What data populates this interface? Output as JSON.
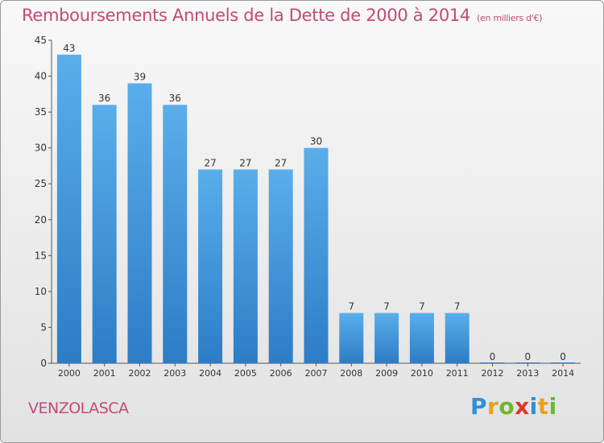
{
  "title": "Remboursements Annuels de la Dette de 2000 à 2014",
  "unit": "(en milliers d'€)",
  "commune": "VENZOLASCA",
  "logo": {
    "letters": [
      "P",
      "r",
      "o",
      "x",
      "i",
      "t",
      "i"
    ],
    "colors": [
      "#2f8fd8",
      "#e8a020",
      "#6cb82f",
      "#d83a2a",
      "#2f8fd8",
      "#e8a020",
      "#6cb82f"
    ]
  },
  "colors": {
    "bar": "#4a9be0",
    "accent": "#c24a78",
    "text": "#333333"
  },
  "chart_data": {
    "type": "bar",
    "title": "Remboursements Annuels de la Dette de 2000 à 2014",
    "categories": [
      "2000",
      "2001",
      "2002",
      "2003",
      "2004",
      "2005",
      "2006",
      "2007",
      "2008",
      "2009",
      "2010",
      "2011",
      "2012",
      "2013",
      "2014"
    ],
    "values": [
      43,
      36,
      39,
      36,
      27,
      27,
      27,
      30,
      7,
      7,
      7,
      7,
      0,
      0,
      0
    ],
    "data_labels": [
      "43",
      "36",
      "39",
      "36",
      "27",
      "27",
      "27",
      "30",
      "7",
      "7",
      "7",
      "7",
      "0",
      "0",
      "0"
    ],
    "ylim": [
      0,
      45
    ],
    "yticks": [
      0,
      5,
      10,
      15,
      20,
      25,
      30,
      35,
      40,
      45
    ],
    "grid": false,
    "xlabel": "",
    "ylabel": ""
  }
}
